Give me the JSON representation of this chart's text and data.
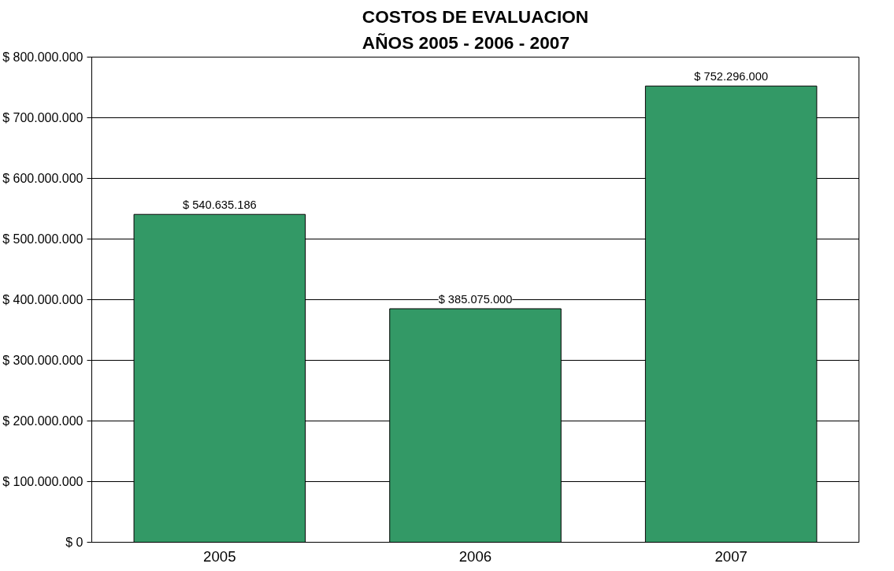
{
  "chart_data": {
    "type": "bar",
    "title": "COSTOS DE EVALUACION\nAÑOS 2005 - 2006 - 2007",
    "categories": [
      "2005",
      "2006",
      "2007"
    ],
    "values": [
      540635186,
      385075000,
      752296000
    ],
    "value_labels": [
      "$ 540.635.186",
      "$ 385.075.000",
      "$ 752.296.000"
    ],
    "color": "#339966",
    "ylim": [
      0,
      800000000
    ],
    "yticks": [
      {
        "value": 0,
        "label": "$ 0"
      },
      {
        "value": 100000000,
        "label": "$ 100.000.000"
      },
      {
        "value": 200000000,
        "label": "$ 200.000.000"
      },
      {
        "value": 300000000,
        "label": "$ 300.000.000"
      },
      {
        "value": 400000000,
        "label": "$ 400.000.000"
      },
      {
        "value": 500000000,
        "label": "$ 500.000.000"
      },
      {
        "value": 600000000,
        "label": "$ 600.000.000"
      },
      {
        "value": 700000000,
        "label": "$ 700.000.000"
      },
      {
        "value": 800000000,
        "label": "$ 800.000.000"
      }
    ],
    "grid": "y"
  }
}
